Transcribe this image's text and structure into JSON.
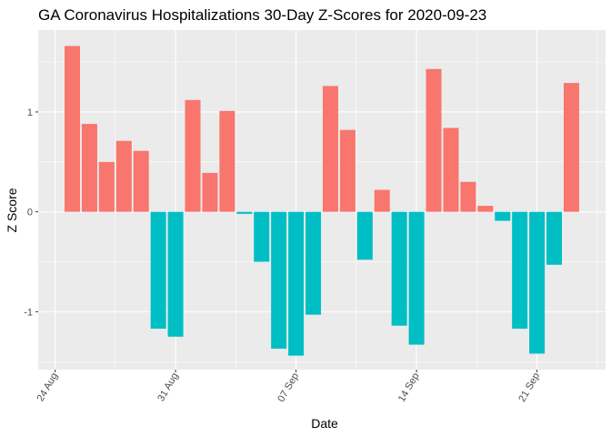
{
  "chart_data": {
    "type": "bar",
    "title": "GA Coronavirus Hospitalizations 30-Day Z-Scores for 2020-09-23",
    "xlabel": "Date",
    "ylabel": "Z Score",
    "x_start": "2020-08-25",
    "values": [
      1.66,
      0.88,
      0.5,
      0.71,
      0.61,
      -1.17,
      -1.25,
      1.12,
      0.39,
      1.01,
      -0.02,
      -0.5,
      -1.37,
      -1.44,
      -1.03,
      1.26,
      0.82,
      -0.48,
      0.22,
      -1.14,
      -1.33,
      1.43,
      0.84,
      0.3,
      0.06,
      -0.09,
      -1.17,
      -1.42,
      -0.53,
      1.29
    ],
    "ylim": [
      -1.58,
      1.82
    ],
    "x_ticks": [
      {
        "date": "2020-08-24",
        "label": "24 Aug"
      },
      {
        "date": "2020-08-31",
        "label": "31 Aug"
      },
      {
        "date": "2020-09-07",
        "label": "07 Sep"
      },
      {
        "date": "2020-09-14",
        "label": "14 Sep"
      },
      {
        "date": "2020-09-21",
        "label": "21 Sep"
      }
    ],
    "y_ticks": [
      {
        "value": -1,
        "label": "-1"
      },
      {
        "value": 0,
        "label": "0"
      },
      {
        "value": 1,
        "label": "1"
      }
    ],
    "grid": true,
    "legend": "none",
    "colors": {
      "positive": "#F8766D",
      "negative": "#00BFC4",
      "panel": "#EBEBEB",
      "grid": "#FFFFFF"
    }
  }
}
